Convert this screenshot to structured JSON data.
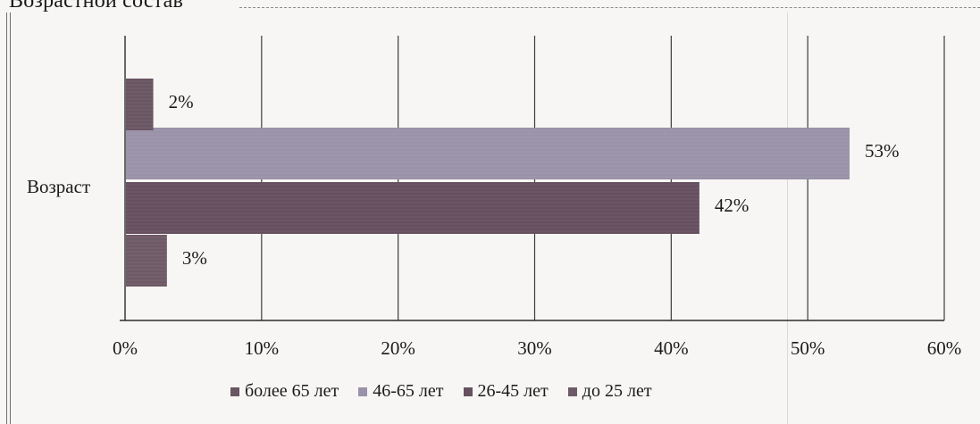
{
  "page": {
    "title": "Возрастной состав"
  },
  "chart_data": {
    "type": "bar",
    "orientation": "horizontal",
    "category": "Возраст",
    "series": [
      {
        "name": "до 25 лет",
        "value": 3,
        "label": "3%",
        "color": "#6e5a66"
      },
      {
        "name": "26-45 лет",
        "value": 42,
        "label": "42%",
        "color": "#66505f"
      },
      {
        "name": "46-65 лет",
        "value": 53,
        "label": "53%",
        "color": "#9a92a8"
      },
      {
        "name": "более 65 лет",
        "value": 2,
        "label": "2%",
        "color": "#6a5562"
      }
    ],
    "xlim": [
      0,
      60
    ],
    "xticks": [
      "0%",
      "10%",
      "20%",
      "30%",
      "40%",
      "50%",
      "60%"
    ],
    "grid": "vertical",
    "legend": "bottom",
    "legend_order": [
      "более 65 лет",
      "46-65 лет",
      "26-45 лет",
      "до 25 лет"
    ]
  }
}
